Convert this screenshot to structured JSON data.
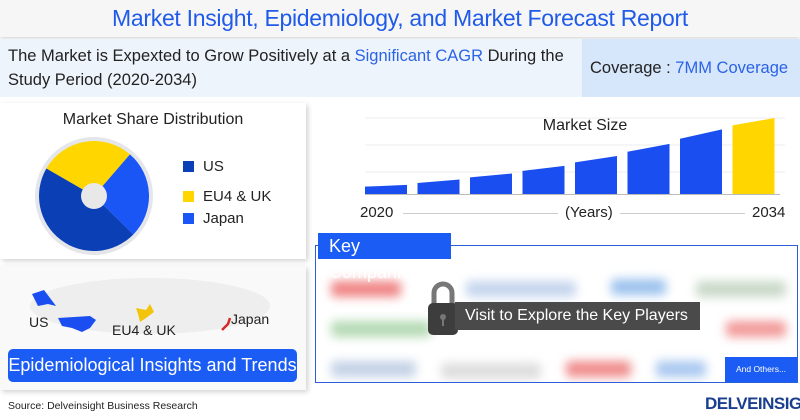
{
  "header": {
    "title": "Market Insight, Epidemiology, and Market Forecast Report"
  },
  "info": {
    "text_before": "The Market is Expexted to Grow Positively at a ",
    "highlight": "Significant CAGR",
    "text_after": " During the Study Period (2020-2034)",
    "coverage_label": "Coverage : ",
    "coverage_value": "7MM Coverage"
  },
  "chart_data": [
    {
      "type": "pie",
      "title": "Market Share Distribution",
      "categories": [
        "US",
        "EU4 & UK",
        "Japan"
      ],
      "values": [
        46,
        28,
        26
      ],
      "colors": [
        "#0a3fb5",
        "#ffd600",
        "#1a55f5"
      ],
      "legend": "right"
    },
    {
      "type": "bar",
      "title": "Market Size",
      "xlabel": "(Years)",
      "x_start_label": "2020",
      "x_end_label": "2034",
      "values": [
        12,
        19,
        27,
        37,
        50,
        66,
        85,
        100
      ],
      "colors": [
        "#1a4ef0",
        "#1a4ef0",
        "#1a4ef0",
        "#1a4ef0",
        "#1a4ef0",
        "#1a4ef0",
        "#1a4ef0",
        "#ffd600"
      ],
      "grid": true
    }
  ],
  "map": {
    "regions": [
      "US",
      "EU4 & UK",
      "Japan"
    ],
    "button": "Epidemiological Insights and Trends"
  },
  "companies": {
    "label": "Key Companies",
    "overlay": "Visit to Explore the Key Players",
    "others": "And Others..."
  },
  "footer": {
    "source": "Source: Delveinsight Business Research",
    "logo": "DELVEINSIGHT"
  }
}
